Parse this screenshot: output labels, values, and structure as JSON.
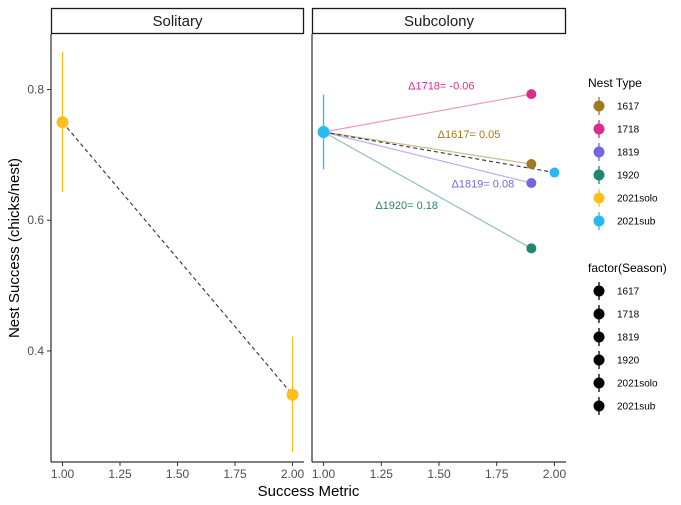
{
  "chart_data": {
    "type": "scatter",
    "xlabel": "Success Metric",
    "ylabel": "Nest Success (chicks/nest)",
    "ylim": [
      0.23,
      0.885
    ],
    "yticks": [
      0.4,
      0.6,
      0.8
    ],
    "ytick_labels": [
      "0.4",
      "0.6",
      "0.8"
    ],
    "grid": false,
    "panels": [
      {
        "name": "Solitary",
        "xlim": [
          0.95,
          2.05
        ],
        "xticks": [
          1.0,
          1.25,
          1.5,
          1.75,
          2.0
        ],
        "xtick_labels": [
          "1.00",
          "1.25",
          "1.50",
          "1.75",
          "2.00"
        ],
        "points": [
          {
            "series": "2021solo",
            "x": 1.0,
            "y": 0.75,
            "ymin": 0.643,
            "ymax": 0.857
          },
          {
            "series": "2021solo",
            "x": 2.0,
            "y": 0.333,
            "ymin": 0.245,
            "ymax": 0.422
          }
        ],
        "dashed_lines": [
          {
            "x": [
              1.0,
              2.0
            ],
            "y": [
              0.75,
              0.333
            ]
          }
        ],
        "colored_lines": [],
        "annotations": []
      },
      {
        "name": "Subcolony",
        "xlim": [
          0.95,
          2.05
        ],
        "xticks": [
          1.0,
          1.25,
          1.5,
          1.75,
          2.0
        ],
        "xtick_labels": [
          "1.00",
          "1.25",
          "1.50",
          "1.75",
          "2.00"
        ],
        "points": [
          {
            "series": "2021sub",
            "x": 1.0,
            "y": 0.735,
            "ymin": 0.678,
            "ymax": 0.792
          },
          {
            "series": "1617",
            "x": 1.9,
            "y": 0.686
          },
          {
            "series": "1718",
            "x": 1.9,
            "y": 0.793
          },
          {
            "series": "1819",
            "x": 1.9,
            "y": 0.657
          },
          {
            "series": "1920",
            "x": 1.9,
            "y": 0.557
          },
          {
            "series": "2021sub",
            "x": 2.0,
            "y": 0.673
          }
        ],
        "dashed_lines": [
          {
            "x": [
              1.0,
              2.0
            ],
            "y": [
              0.735,
              0.673
            ]
          }
        ],
        "colored_lines": [
          {
            "series": "1718",
            "x": [
              1.0,
              1.9
            ],
            "y": [
              0.735,
              0.793
            ]
          },
          {
            "series": "1617",
            "x": [
              1.0,
              1.9
            ],
            "y": [
              0.735,
              0.686
            ]
          },
          {
            "series": "1819",
            "x": [
              1.0,
              1.9
            ],
            "y": [
              0.735,
              0.657
            ]
          },
          {
            "series": "1920",
            "x": [
              1.0,
              1.9
            ],
            "y": [
              0.735,
              0.557
            ]
          }
        ],
        "annotations": [
          {
            "series": "1718",
            "text": "Δ1718= -0.06",
            "x": 1.51,
            "y": 0.8
          },
          {
            "series": "1617",
            "text": "Δ1617= 0.05",
            "x": 1.63,
            "y": 0.726
          },
          {
            "series": "1819",
            "text": "Δ1819= 0.08",
            "x": 1.69,
            "y": 0.65
          },
          {
            "series": "1920",
            "text": "Δ1920= 0.18",
            "x": 1.36,
            "y": 0.617
          }
        ]
      }
    ],
    "legends": [
      {
        "title": "Nest Type",
        "placement": "right",
        "entries": [
          {
            "label": "1617",
            "color": "#A07A1E"
          },
          {
            "label": "1718",
            "color": "#DB2C8E"
          },
          {
            "label": "1819",
            "color": "#7366E0"
          },
          {
            "label": "1920",
            "color": "#20876E"
          },
          {
            "label": "2021solo",
            "color": "#FEBE1D"
          },
          {
            "label": "2021sub",
            "color": "#29B9F1"
          }
        ]
      },
      {
        "title": "factor(Season)",
        "placement": "right",
        "entries": [
          {
            "label": "1617",
            "color": "#000000"
          },
          {
            "label": "1718",
            "color": "#000000"
          },
          {
            "label": "1819",
            "color": "#000000"
          },
          {
            "label": "1920",
            "color": "#000000"
          },
          {
            "label": "2021solo",
            "color": "#000000"
          },
          {
            "label": "2021sub",
            "color": "#000000"
          }
        ]
      }
    ]
  }
}
